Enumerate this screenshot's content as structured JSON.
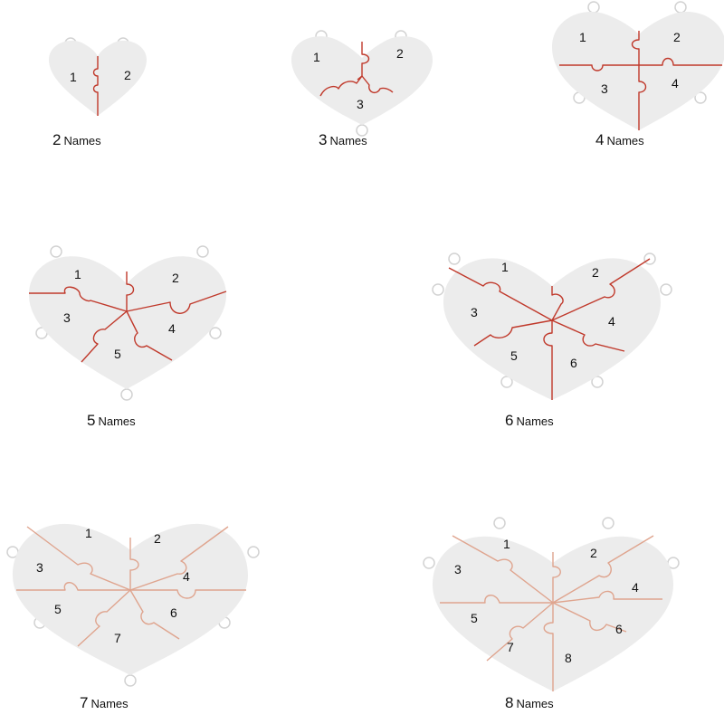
{
  "colors": {
    "heart_fill": "#ececec",
    "ring_fill": "#ffffff",
    "ring_stroke": "#d2d2d2",
    "cut_red": "#c0392b",
    "cut_rose": "#dfa48e",
    "text": "#111111"
  },
  "options": [
    {
      "count": "2",
      "word": "Names",
      "pieces": [
        "1",
        "2"
      ]
    },
    {
      "count": "3",
      "word": "Names",
      "pieces": [
        "1",
        "2",
        "3"
      ]
    },
    {
      "count": "4",
      "word": "Names",
      "pieces": [
        "1",
        "2",
        "3",
        "4"
      ]
    },
    {
      "count": "5",
      "word": "Names",
      "pieces": [
        "1",
        "2",
        "3",
        "4",
        "5"
      ]
    },
    {
      "count": "6",
      "word": "Names",
      "pieces": [
        "1",
        "2",
        "3",
        "4",
        "5",
        "6"
      ]
    },
    {
      "count": "7",
      "word": "Names",
      "pieces": [
        "1",
        "2",
        "3",
        "4",
        "5",
        "6",
        "7"
      ]
    },
    {
      "count": "8",
      "word": "Names",
      "pieces": [
        "1",
        "2",
        "3",
        "4",
        "5",
        "6",
        "7",
        "8"
      ]
    }
  ]
}
